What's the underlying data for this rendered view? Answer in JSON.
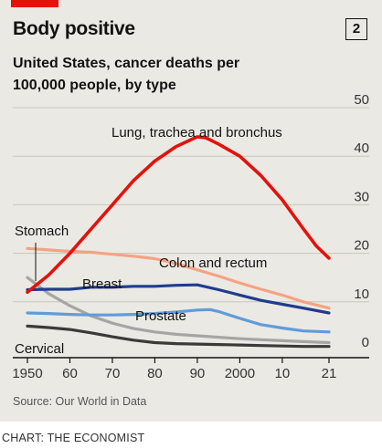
{
  "header": {
    "title": "Body positive",
    "badge": "2",
    "subtitle": "United States, cancer deaths per 100,000 people, by type"
  },
  "source": "Source: Our World in Data",
  "credit": "CHART: THE ECONOMIST",
  "chart_data": {
    "type": "line",
    "title": "Body positive",
    "subtitle": "United States, cancer deaths per 100,000 people, by type",
    "xlabel": "",
    "ylabel": "",
    "xlim": [
      1950,
      2021
    ],
    "ylim": [
      0,
      50
    ],
    "x_tick_labels": [
      {
        "x": 1950,
        "label": "1950"
      },
      {
        "x": 1960,
        "label": "60"
      },
      {
        "x": 1970,
        "label": "70"
      },
      {
        "x": 1980,
        "label": "80"
      },
      {
        "x": 1990,
        "label": "90"
      },
      {
        "x": 2000,
        "label": "2000"
      },
      {
        "x": 2010,
        "label": "10"
      },
      {
        "x": 2021,
        "label": "21"
      }
    ],
    "y_ticks": [
      0,
      10,
      20,
      30,
      40,
      50
    ],
    "grid": true,
    "series": [
      {
        "name": "Lung, trachea and bronchus",
        "color": "#e3120b",
        "x": [
          1950,
          1955,
          1960,
          1965,
          1970,
          1975,
          1980,
          1985,
          1990,
          1992,
          1995,
          2000,
          2005,
          2010,
          2015,
          2018,
          2021
        ],
        "y": [
          12,
          15.5,
          20,
          25,
          30,
          35,
          39,
          42,
          44,
          43.8,
          42.5,
          40,
          36,
          31,
          25,
          21.5,
          19
        ]
      },
      {
        "name": "Colon and rectum",
        "color": "#f4a384",
        "x": [
          1950,
          1955,
          1960,
          1965,
          1970,
          1975,
          1980,
          1985,
          1990,
          1995,
          2000,
          2005,
          2010,
          2015,
          2021
        ],
        "y": [
          21,
          20.7,
          20.4,
          20.2,
          19.8,
          19.4,
          18.9,
          17.9,
          16.6,
          15.3,
          13.9,
          12.6,
          11.4,
          10,
          8.7
        ]
      },
      {
        "name": "Breast",
        "color": "#1f3d8c",
        "x": [
          1950,
          1955,
          1960,
          1965,
          1970,
          1975,
          1980,
          1985,
          1990,
          1995,
          2000,
          2005,
          2010,
          2015,
          2021
        ],
        "y": [
          12.5,
          12.6,
          12.6,
          13,
          13,
          13.2,
          13.2,
          13.4,
          13.5,
          12.5,
          11.4,
          10.3,
          9.5,
          8.7,
          7.7
        ]
      },
      {
        "name": "Prostate",
        "color": "#5f9cdb",
        "x": [
          1950,
          1955,
          1960,
          1965,
          1970,
          1975,
          1980,
          1985,
          1990,
          1993,
          1995,
          2000,
          2005,
          2010,
          2015,
          2021
        ],
        "y": [
          7.7,
          7.6,
          7.4,
          7.3,
          7.3,
          7.4,
          7.6,
          7.9,
          8.3,
          8.4,
          8,
          6.6,
          5.3,
          4.6,
          4,
          3.8
        ]
      },
      {
        "name": "Stomach",
        "color": "#a5a5a5",
        "x": [
          1950,
          1955,
          1960,
          1965,
          1970,
          1975,
          1980,
          1985,
          1990,
          1995,
          2000,
          2005,
          2010,
          2015,
          2021
        ],
        "y": [
          15,
          11.7,
          9.2,
          7.1,
          5.6,
          4.5,
          3.8,
          3.3,
          3,
          2.7,
          2.4,
          2.2,
          2,
          1.8,
          1.6
        ]
      },
      {
        "name": "Cervical",
        "color": "#3a3a3a",
        "x": [
          1950,
          1955,
          1960,
          1965,
          1970,
          1975,
          1980,
          1985,
          1990,
          1995,
          2000,
          2005,
          2010,
          2015,
          2021
        ],
        "y": [
          5,
          4.7,
          4.3,
          3.6,
          2.8,
          2.1,
          1.6,
          1.4,
          1.3,
          1.2,
          1.1,
          1,
          0.9,
          0.8,
          0.8
        ]
      }
    ]
  }
}
